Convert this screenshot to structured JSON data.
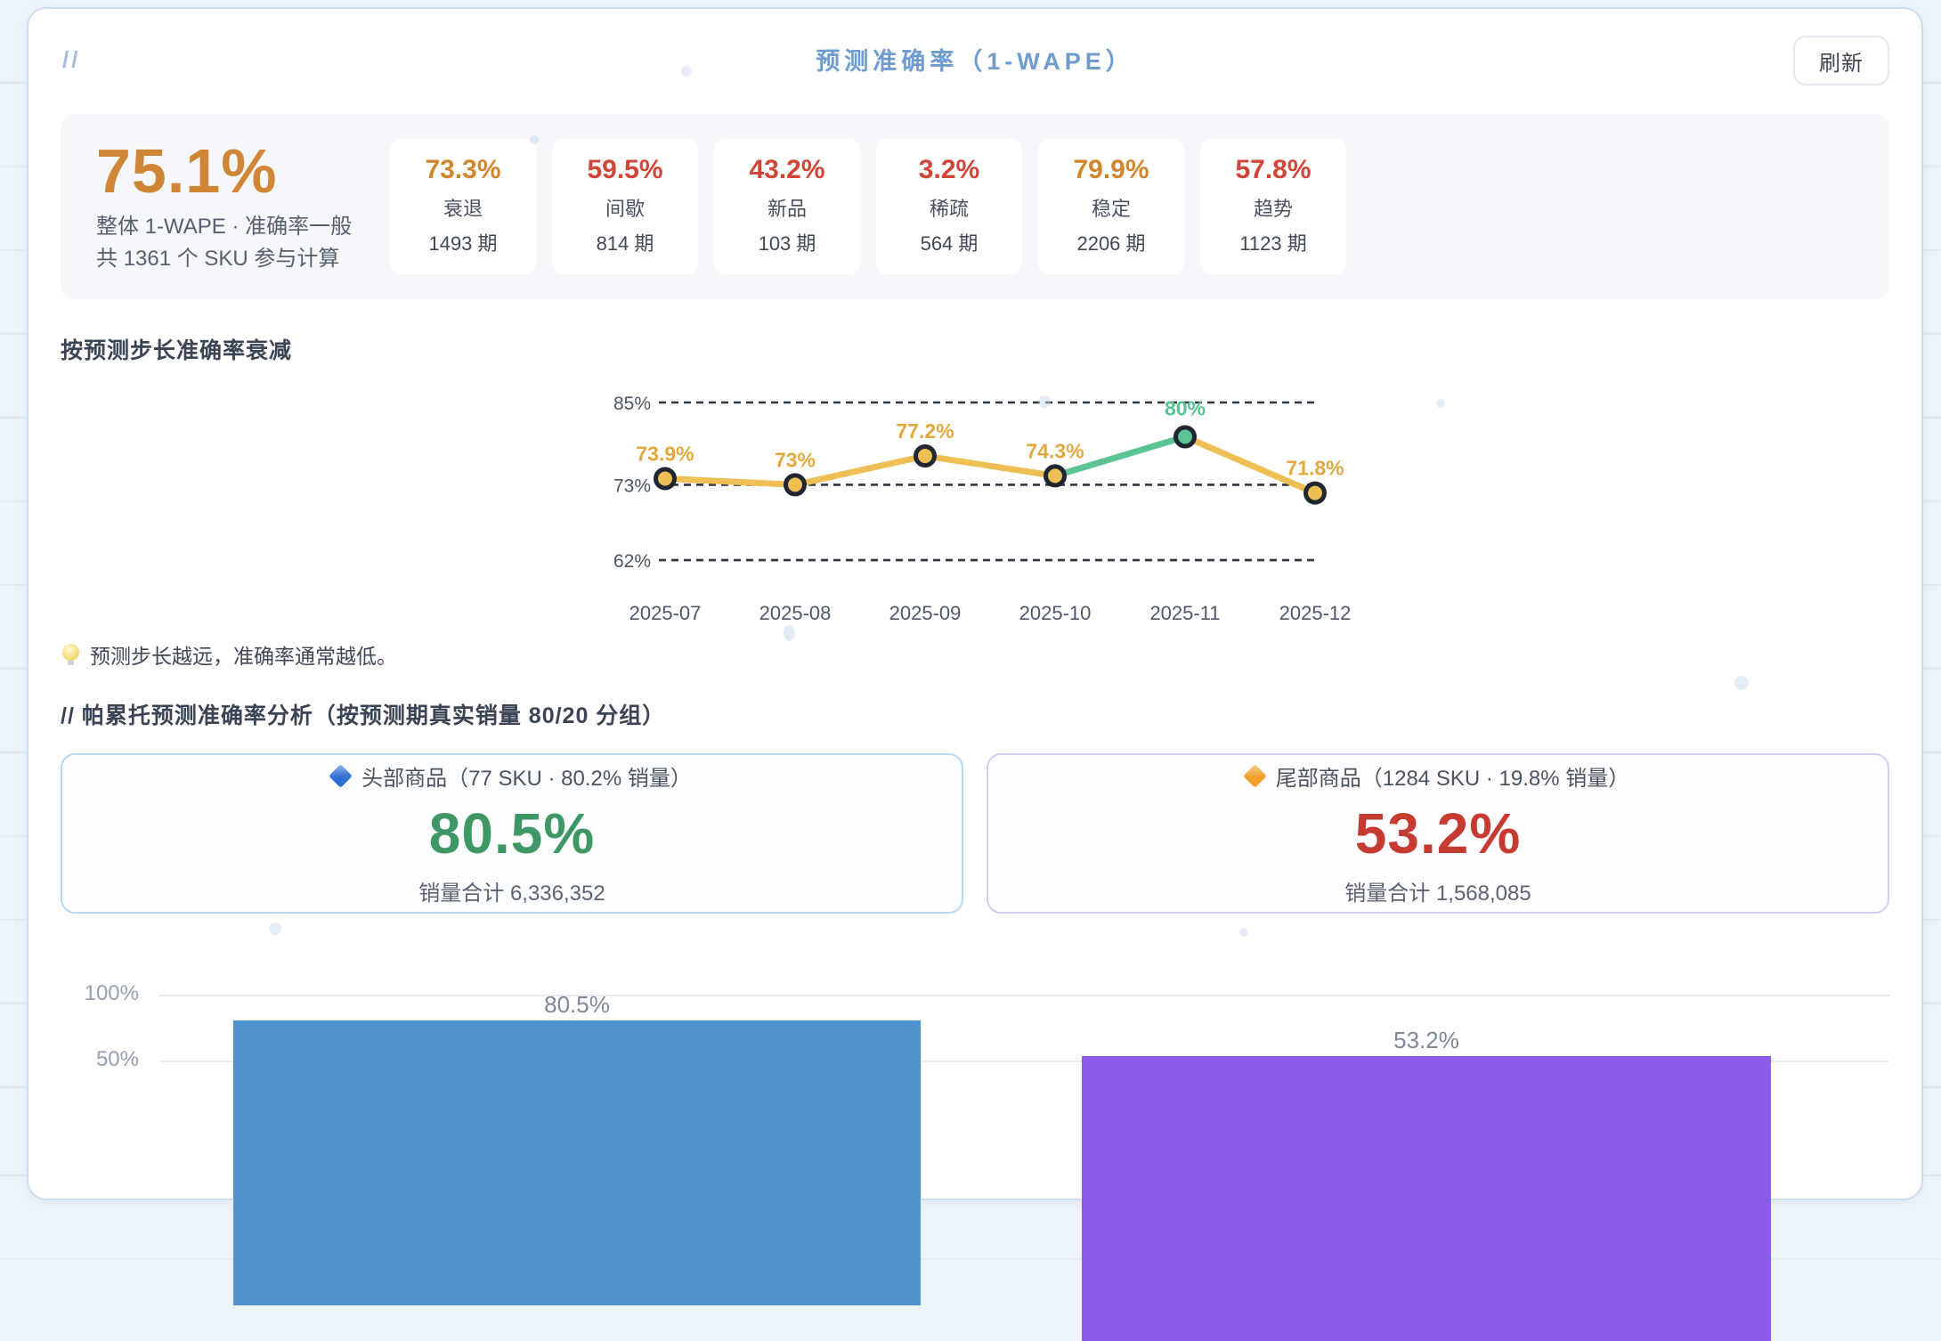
{
  "header": {
    "slashes": "//",
    "title": "预测准确率（1-WAPE）",
    "refresh_label": "刷新",
    "title_color": "#6e9cce"
  },
  "kpi": {
    "overall_value": "75.1%",
    "overall_color": "#cf8636",
    "overall_line1": "整体 1-WAPE · 准确率一般",
    "overall_line2": "共 1361 个 SKU 参与计算",
    "segments": [
      {
        "value": "73.3%",
        "label": "衰退",
        "count": "1493 期",
        "color": "#d0862f"
      },
      {
        "value": "59.5%",
        "label": "间歇",
        "count": "814 期",
        "color": "#cf4537"
      },
      {
        "value": "43.2%",
        "label": "新品",
        "count": "103 期",
        "color": "#cf4537"
      },
      {
        "value": "3.2%",
        "label": "稀疏",
        "count": "564 期",
        "color": "#cf4537"
      },
      {
        "value": "79.9%",
        "label": "稳定",
        "count": "2206 期",
        "color": "#d0862f"
      },
      {
        "value": "57.8%",
        "label": "趋势",
        "count": "1123 期",
        "color": "#cf4537"
      }
    ]
  },
  "decay": {
    "heading": "按预测步长准确率衰减",
    "tip": "预测步长越远，准确率通常越低。"
  },
  "pareto": {
    "heading": "// 帕累托预测准确率分析（按预测期真实销量 80/20 分组）",
    "head": {
      "title": "头部商品（77 SKU · 80.2% 销量）",
      "value": "80.5%",
      "subtitle": "销量合计 6,336,352",
      "value_color": "#3e9765",
      "diamond_color": "#2f6fd3"
    },
    "tail": {
      "title": "尾部商品（1284 SKU · 19.8% 销量）",
      "value": "53.2%",
      "subtitle": "销量合计 1,568,085",
      "value_color": "#c53a31",
      "diamond_color": "#f0a02a"
    }
  },
  "chart_data": [
    {
      "type": "line",
      "title": "按预测步长准确率衰减",
      "x": [
        "2025-07",
        "2025-08",
        "2025-09",
        "2025-10",
        "2025-11",
        "2025-12"
      ],
      "series": [
        {
          "name": "准确率",
          "values": [
            73.9,
            73.0,
            77.2,
            74.3,
            80.0,
            71.8
          ]
        }
      ],
      "point_labels": [
        "73.9%",
        "73%",
        "77.2%",
        "74.3%",
        "80%",
        "71.8%"
      ],
      "highlight_index": 4,
      "yticks": [
        {
          "label": "85%",
          "value": 85
        },
        {
          "label": "73%",
          "value": 73
        },
        {
          "label": "62%",
          "value": 62
        }
      ],
      "ylim": [
        60,
        87
      ],
      "grid": "dashed-horizontal",
      "legend": "none",
      "line_color": "#edbf55",
      "highlight_color": "#5cc392",
      "label_color": "#e2a83f",
      "highlight_label_color": "#56c390",
      "marker_stroke": "#1f2733"
    },
    {
      "type": "bar",
      "categories": [
        "头部商品",
        "尾部商品"
      ],
      "values": [
        80.5,
        53.2
      ],
      "bar_labels": [
        "80.5%",
        "53.2%"
      ],
      "colors": [
        "#4f93ce",
        "#8a5ce8"
      ],
      "yticks": [
        {
          "label": "100%",
          "value": 100
        },
        {
          "label": "50%",
          "value": 50
        }
      ],
      "ylim": [
        0,
        100
      ],
      "grid": "solid-horizontal",
      "legend": "none"
    }
  ]
}
